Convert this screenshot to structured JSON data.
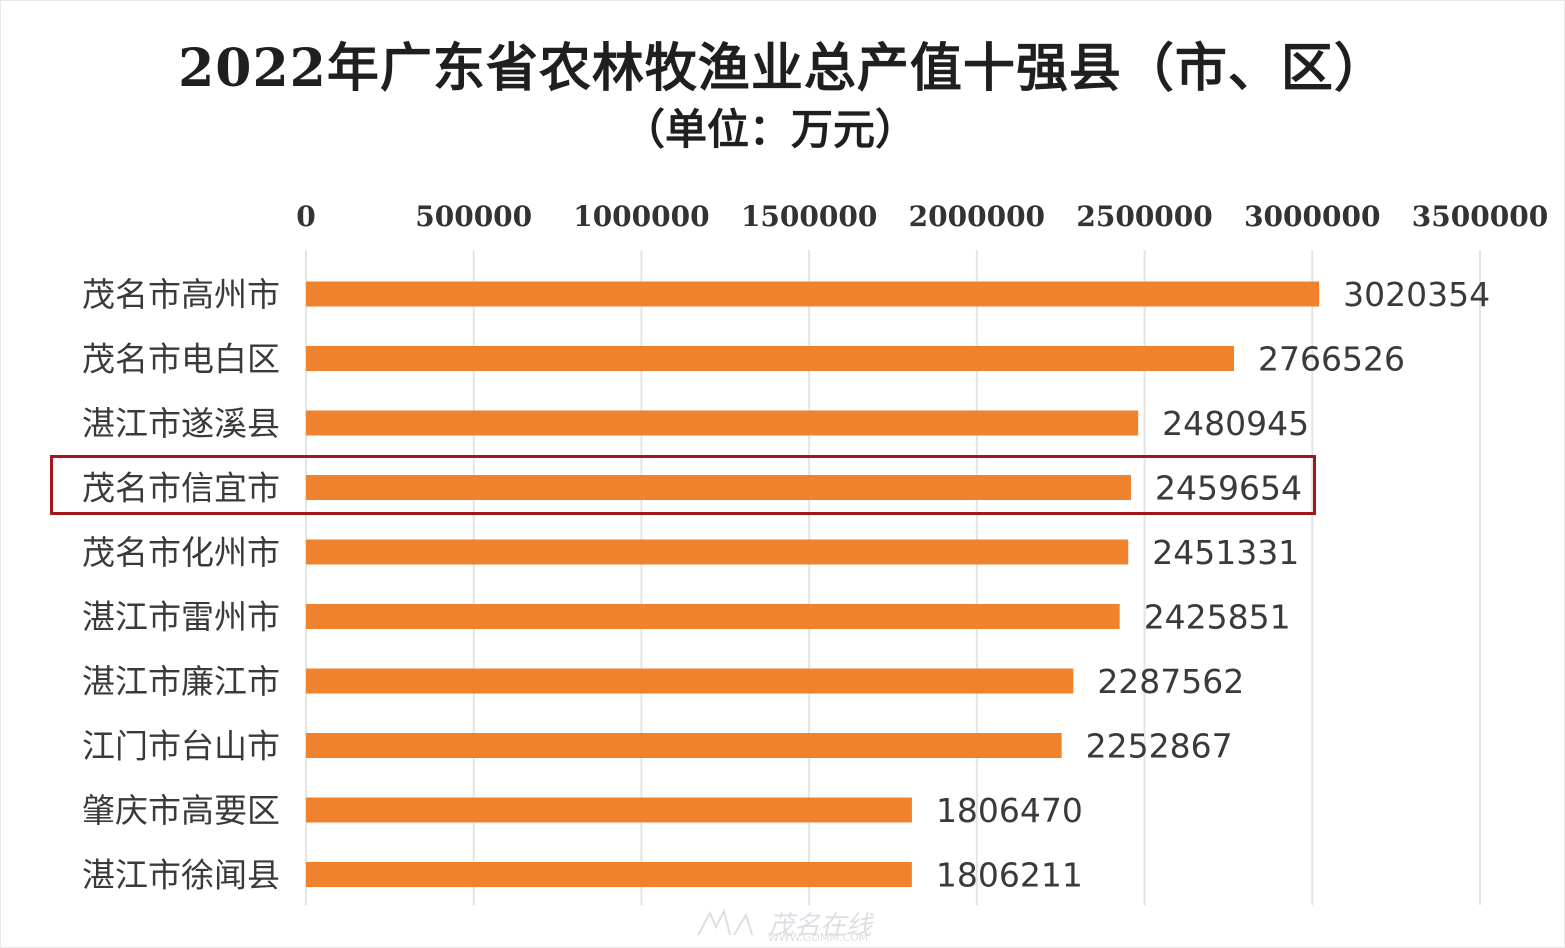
{
  "chart_data": {
    "type": "bar",
    "orientation": "horizontal",
    "title": "2022年广东省农林牧渔业总产值十强县（市、区）",
    "subtitle": "（单位：万元）",
    "categories": [
      "茂名市高州市",
      "茂名市电白区",
      "湛江市遂溪县",
      "茂名市信宜市",
      "茂名市化州市",
      "湛江市雷州市",
      "湛江市廉江市",
      "江门市台山市",
      "肇庆市高要区",
      "湛江市徐闻县"
    ],
    "values": [
      3020354,
      2766526,
      2480945,
      2459654,
      2451331,
      2425851,
      2287562,
      2252867,
      1806470,
      1806211
    ],
    "value_labels": [
      "3020354",
      "2766526",
      "2480945",
      "2459654",
      "2451331",
      "2425851",
      "2287562",
      "2252867",
      "1806470",
      "1806211"
    ],
    "xlim": [
      0,
      3500000
    ],
    "x_ticks": [
      0,
      500000,
      1000000,
      1500000,
      2000000,
      2500000,
      3000000,
      3500000
    ],
    "x_tick_labels": [
      "0",
      "500000",
      "1000000",
      "1500000",
      "2000000",
      "2500000",
      "3000000",
      "3500000"
    ],
    "x_axis_position": "top",
    "grid": true,
    "legend": "none",
    "bar_color": "#f0822e",
    "highlighted_category": "茂名市信宜市",
    "highlight_color": "#a3171b"
  },
  "watermark": {
    "text": "茂名在线",
    "url": "WWW.GDMM.COM"
  }
}
